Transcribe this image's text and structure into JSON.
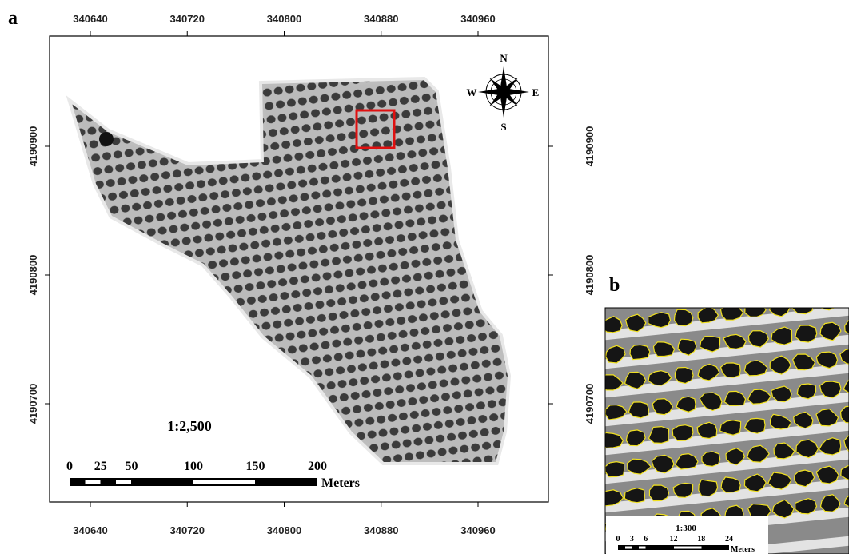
{
  "panel_a": {
    "label": "a",
    "x_ticks": [
      340640,
      340720,
      340800,
      340880,
      340960
    ],
    "y_ticks": [
      4190900,
      4190800,
      4190700
    ],
    "compass": {
      "n": "N",
      "e": "E",
      "s": "S",
      "w": "W"
    },
    "scale_ratio": "1:2,500",
    "scale_bar": {
      "ticks": [
        0,
        25,
        50,
        100,
        150,
        200
      ],
      "unit": "Meters"
    }
  },
  "panel_b": {
    "label": "b",
    "scale_ratio": "1:300",
    "scale_bar": {
      "ticks": [
        0,
        3,
        6,
        12,
        18,
        24
      ],
      "unit": "Meters"
    }
  }
}
